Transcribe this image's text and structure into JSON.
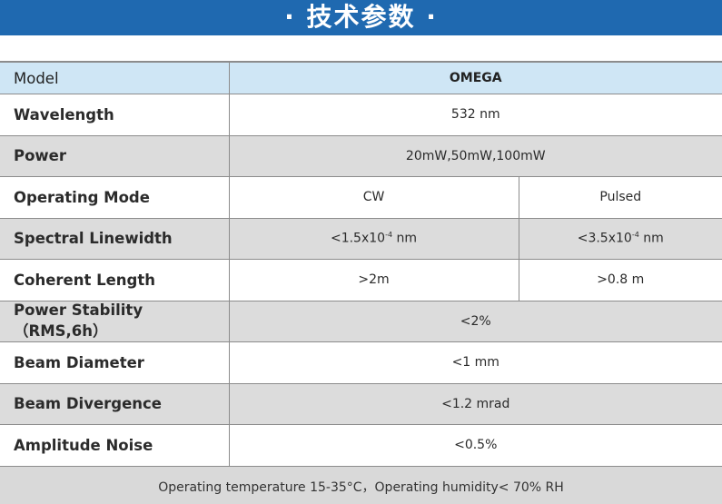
{
  "header": {
    "title": "· 技术参数 ·"
  },
  "colors": {
    "header_bg": "#1f69b0",
    "model_row_bg": "#cfe6f5",
    "shaded_row_bg": "#dcdcdc"
  },
  "table": {
    "model": {
      "label": "Model",
      "value": "OMEGA"
    },
    "wavelength": {
      "label": "Wavelength",
      "value": "532 nm"
    },
    "power": {
      "label": "Power",
      "value": "20mW,50mW,100mW"
    },
    "operating_mode": {
      "label": "Operating Mode",
      "cw": "CW",
      "pulsed": "Pulsed"
    },
    "spectral_linewidth": {
      "label": "Spectral Linewidth",
      "cw_prefix": "<1.5x10",
      "cw_exp": "-4",
      "cw_unit": " nm",
      "pulsed_prefix": "<3.5x10",
      "pulsed_exp": "-4",
      "pulsed_unit": " nm"
    },
    "coherent_length": {
      "label": "Coherent Length",
      "cw": ">2m",
      "pulsed": ">0.8 m"
    },
    "power_stability": {
      "label": "Power Stability（RMS,6h）",
      "value": "<2%"
    },
    "beam_diameter": {
      "label": "Beam Diameter",
      "value": "<1 mm"
    },
    "beam_divergence": {
      "label": "Beam Divergence",
      "value": "<1.2 mrad"
    },
    "amplitude_noise": {
      "label": "Amplitude Noise",
      "value": "<0.5%"
    },
    "footer": "Operating temperature 15-35°C，Operating humidity< 70% RH"
  }
}
